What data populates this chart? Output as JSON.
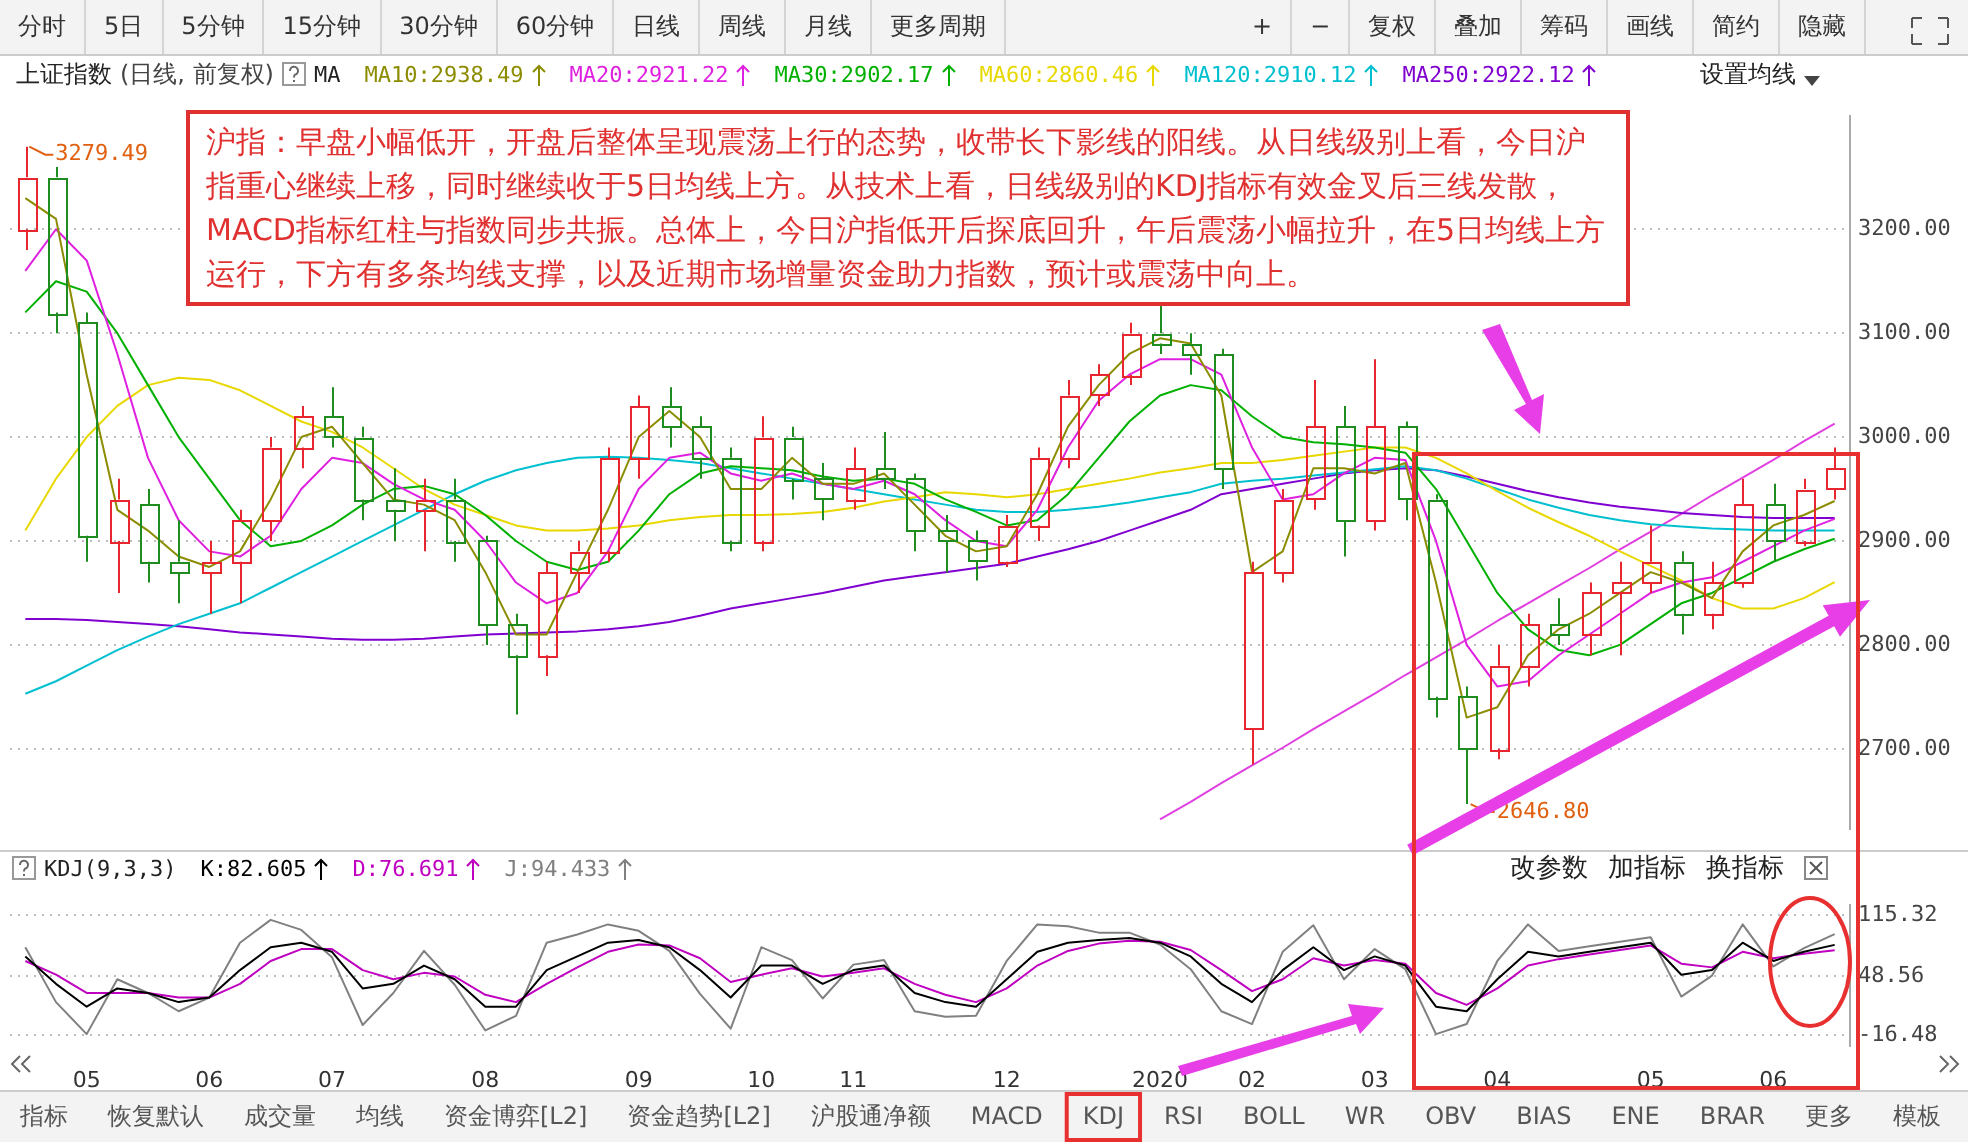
{
  "chart_data": [
    {
      "type": "other",
      "annotations": [
        "分时",
        "5日",
        "5分钟",
        "15分钟",
        "30分钟",
        "60分钟",
        "日线",
        "周线",
        "月线",
        "更多周期"
      ]
    },
    {
      "type": "other",
      "annotations": [
        "+",
        "−",
        "复权",
        "叠加",
        "筹码",
        "画线",
        "简约",
        "隐藏"
      ]
    },
    {
      "type": "candlestick",
      "title": "上证指数",
      "subtitle": "(日线, 前复权)",
      "legend_title": "MA",
      "categories": [
        null,
        null,
        "05",
        null,
        null,
        null,
        "06",
        null,
        null,
        null,
        "07",
        null,
        null,
        null,
        null,
        "08",
        null,
        null,
        null,
        null,
        "09",
        null,
        null,
        null,
        "10",
        null,
        null,
        "11",
        null,
        null,
        null,
        null,
        "12",
        null,
        null,
        null,
        null,
        "2020",
        null,
        null,
        "02",
        null,
        null,
        null,
        "03",
        null,
        null,
        null,
        "04",
        null,
        null,
        null,
        null,
        "05",
        null,
        null,
        null,
        "06",
        null,
        null
      ],
      "ohlc": [
        [
          3200,
          3279.49,
          3180,
          3250
        ],
        [
          3250,
          3260,
          3100,
          3120
        ],
        [
          3110,
          3120,
          2880,
          2905
        ],
        [
          2900,
          2960,
          2850,
          2940
        ],
        [
          2935,
          2950,
          2860,
          2880
        ],
        [
          2880,
          2920,
          2840,
          2870
        ],
        [
          2870,
          2900,
          2830,
          2880
        ],
        [
          2880,
          2930,
          2840,
          2920
        ],
        [
          2920,
          3000,
          2900,
          2990
        ],
        [
          2990,
          3030,
          2970,
          3020
        ],
        [
          3020,
          3048,
          2990,
          3000
        ],
        [
          3000,
          3010,
          2920,
          2940
        ],
        [
          2940,
          2970,
          2900,
          2930
        ],
        [
          2930,
          2960,
          2890,
          2940
        ],
        [
          2940,
          2960,
          2880,
          2900
        ],
        [
          2900,
          2905,
          2800,
          2820
        ],
        [
          2820,
          2830,
          2733,
          2790
        ],
        [
          2790,
          2880,
          2770,
          2870
        ],
        [
          2870,
          2900,
          2850,
          2890
        ],
        [
          2890,
          2990,
          2880,
          2980
        ],
        [
          2980,
          3040,
          2960,
          3030
        ],
        [
          3030,
          3048,
          2990,
          3010
        ],
        [
          3010,
          3020,
          2960,
          2980
        ],
        [
          2980,
          2990,
          2890,
          2900
        ],
        [
          2900,
          3020,
          2890,
          3000
        ],
        [
          3000,
          3010,
          2940,
          2960
        ],
        [
          2960,
          2975,
          2920,
          2940
        ],
        [
          2940,
          2990,
          2930,
          2970
        ],
        [
          2970,
          3005,
          2950,
          2960
        ],
        [
          2960,
          2965,
          2890,
          2910
        ],
        [
          2910,
          2925,
          2870,
          2900
        ],
        [
          2900,
          2910,
          2862,
          2880
        ],
        [
          2880,
          2925,
          2875,
          2915
        ],
        [
          2915,
          2990,
          2900,
          2980
        ],
        [
          2980,
          3055,
          2970,
          3040
        ],
        [
          3040,
          3070,
          3030,
          3060
        ],
        [
          3060,
          3110,
          3050,
          3100
        ],
        [
          3100,
          3127,
          3080,
          3090
        ],
        [
          3090,
          3100,
          3060,
          3080
        ],
        [
          3080,
          3085,
          2950,
          2970
        ],
        [
          2720,
          2880,
          2685,
          2870
        ],
        [
          2870,
          2950,
          2860,
          2940
        ],
        [
          2940,
          3055,
          2930,
          3010
        ],
        [
          3010,
          3030,
          2885,
          2920
        ],
        [
          2920,
          3075,
          2910,
          3010
        ],
        [
          3010,
          3015,
          2920,
          2940
        ],
        [
          2940,
          2945,
          2730,
          2750
        ],
        [
          2750,
          2760,
          2646.8,
          2700
        ],
        [
          2700,
          2800,
          2690,
          2780
        ],
        [
          2780,
          2830,
          2760,
          2820
        ],
        [
          2820,
          2845,
          2800,
          2810
        ],
        [
          2810,
          2860,
          2790,
          2850
        ],
        [
          2850,
          2880,
          2790,
          2860
        ],
        [
          2860,
          2915,
          2850,
          2880
        ],
        [
          2880,
          2890,
          2810,
          2830
        ],
        [
          2830,
          2880,
          2815,
          2860
        ],
        [
          2860,
          2960,
          2855,
          2935
        ],
        [
          2935,
          2955,
          2880,
          2900
        ],
        [
          2900,
          2960,
          2895,
          2950
        ],
        [
          2950,
          2990,
          2940,
          2970
        ]
      ],
      "colors": [
        "#e8262d",
        "#1e8c1e",
        "#1e8c1e",
        "#e8262d",
        "#1e8c1e",
        "#1e8c1e",
        "#e8262d",
        "#e8262d",
        "#e8262d",
        "#e8262d",
        "#1e8c1e",
        "#1e8c1e",
        "#1e8c1e",
        "#e8262d",
        "#1e8c1e",
        "#1e8c1e",
        "#1e8c1e",
        "#e8262d",
        "#e8262d",
        "#e8262d",
        "#e8262d",
        "#1e8c1e",
        "#1e8c1e",
        "#1e8c1e",
        "#e8262d",
        "#1e8c1e",
        "#1e8c1e",
        "#e8262d",
        "#1e8c1e",
        "#1e8c1e",
        "#1e8c1e",
        "#1e8c1e",
        "#e8262d",
        "#e8262d",
        "#e8262d",
        "#e8262d",
        "#e8262d",
        "#1e8c1e",
        "#1e8c1e",
        "#1e8c1e",
        "#e8262d",
        "#e8262d",
        "#e8262d",
        "#1e8c1e",
        "#e8262d",
        "#1e8c1e",
        "#1e8c1e",
        "#1e8c1e",
        "#e8262d",
        "#e8262d",
        "#1e8c1e",
        "#e8262d",
        "#e8262d",
        "#e8262d",
        "#1e8c1e",
        "#e8262d",
        "#e8262d",
        "#1e8c1e",
        "#e8262d",
        "#e8262d"
      ],
      "series": [
        {
          "name": "MA10:2938.49",
          "type": "line",
          "color": "#8c8c00",
          "values": [
            3230,
            3210,
            3060,
            2930,
            2910,
            2885,
            2875,
            2890,
            2940,
            3000,
            3010,
            2975,
            2940,
            2935,
            2920,
            2870,
            2810,
            2810,
            2870,
            2930,
            3000,
            3025,
            3000,
            2950,
            2950,
            2980,
            2955,
            2955,
            2965,
            2935,
            2905,
            2890,
            2895,
            2945,
            3010,
            3050,
            3080,
            3095,
            3090,
            3040,
            2870,
            2890,
            2970,
            2970,
            2965,
            2975,
            2860,
            2730,
            2740,
            2790,
            2815,
            2830,
            2850,
            2870,
            2860,
            2845,
            2890,
            2915,
            2925,
            2938.49
          ]
        },
        {
          "name": "MA20:2921.22",
          "type": "line",
          "color": "#e020e0",
          "values": [
            3160,
            3200,
            3170,
            3080,
            2980,
            2920,
            2890,
            2885,
            2905,
            2950,
            2980,
            2975,
            2955,
            2940,
            2930,
            2900,
            2860,
            2840,
            2850,
            2890,
            2950,
            2980,
            2985,
            2965,
            2958,
            2965,
            2955,
            2950,
            2958,
            2945,
            2920,
            2900,
            2895,
            2930,
            2990,
            3035,
            3060,
            3075,
            3075,
            3060,
            2990,
            2940,
            2945,
            2965,
            2980,
            2978,
            2900,
            2800,
            2760,
            2765,
            2790,
            2810,
            2830,
            2850,
            2860,
            2865,
            2880,
            2895,
            2910,
            2921.22
          ]
        },
        {
          "name": "MA30:2902.17",
          "type": "line",
          "color": "#00b000",
          "values": [
            3120,
            3150,
            3140,
            3100,
            3050,
            3000,
            2960,
            2920,
            2895,
            2900,
            2915,
            2935,
            2950,
            2953,
            2945,
            2925,
            2900,
            2880,
            2872,
            2880,
            2910,
            2945,
            2965,
            2972,
            2970,
            2968,
            2962,
            2958,
            2960,
            2955,
            2940,
            2928,
            2915,
            2920,
            2945,
            2980,
            3015,
            3040,
            3050,
            3045,
            3020,
            3000,
            2995,
            2993,
            2990,
            2985,
            2950,
            2900,
            2850,
            2815,
            2795,
            2790,
            2800,
            2820,
            2840,
            2850,
            2865,
            2880,
            2892,
            2902.17
          ]
        },
        {
          "name": "MA60:2860.46",
          "type": "line",
          "color": "#e8d800",
          "values": [
            2910,
            2960,
            3000,
            3030,
            3050,
            3057,
            3055,
            3045,
            3030,
            3015,
            3005,
            2990,
            2970,
            2950,
            2935,
            2925,
            2915,
            2910,
            2910,
            2912,
            2915,
            2920,
            2923,
            2925,
            2925,
            2926,
            2928,
            2932,
            2938,
            2942,
            2947,
            2945,
            2942,
            2945,
            2950,
            2955,
            2960,
            2966,
            2970,
            2975,
            2975,
            2978,
            2982,
            2986,
            2990,
            2990,
            2980,
            2965,
            2948,
            2932,
            2918,
            2905,
            2890,
            2876,
            2862,
            2845,
            2835,
            2835,
            2845,
            2860.46
          ]
        },
        {
          "name": "MA120:2910.12",
          "type": "line",
          "color": "#00c0d0",
          "values": [
            2753,
            2765,
            2780,
            2795,
            2808,
            2820,
            2830,
            2840,
            2855,
            2870,
            2885,
            2900,
            2915,
            2930,
            2945,
            2958,
            2968,
            2975,
            2980,
            2981,
            2980,
            2978,
            2975,
            2970,
            2965,
            2960,
            2955,
            2950,
            2945,
            2940,
            2935,
            2930,
            2928,
            2928,
            2930,
            2933,
            2937,
            2942,
            2947,
            2955,
            2958,
            2960,
            2963,
            2966,
            2969,
            2972,
            2968,
            2960,
            2950,
            2940,
            2932,
            2925,
            2920,
            2916,
            2914,
            2912,
            2911,
            2910,
            2910,
            2910.12
          ]
        },
        {
          "name": "MA250:2922.12",
          "type": "line",
          "color": "#8000d0",
          "values": [
            2825,
            2825,
            2824,
            2822,
            2820,
            2818,
            2815,
            2812,
            2810,
            2808,
            2806,
            2805,
            2805,
            2806,
            2808,
            2810,
            2811,
            2812,
            2813,
            2815,
            2818,
            2822,
            2828,
            2835,
            2840,
            2845,
            2850,
            2856,
            2862,
            2866,
            2870,
            2874,
            2878,
            2885,
            2892,
            2900,
            2910,
            2920,
            2930,
            2945,
            2950,
            2955,
            2960,
            2965,
            2968,
            2970,
            2968,
            2962,
            2955,
            2948,
            2942,
            2937,
            2933,
            2930,
            2927,
            2925,
            2923,
            2922,
            2922,
            2922.12
          ]
        },
        {
          "type": "line",
          "color": "#e040e0",
          "values": [
            null,
            null,
            null,
            null,
            null,
            null,
            null,
            null,
            null,
            null,
            null,
            null,
            null,
            null,
            null,
            null,
            null,
            null,
            null,
            null,
            null,
            null,
            null,
            null,
            null,
            null,
            null,
            null,
            null,
            null,
            null,
            null,
            null,
            null,
            null,
            null,
            null,
            2632,
            2649,
            2667,
            2684,
            2701,
            2719,
            2736,
            2753,
            2771,
            2788,
            2805,
            2823,
            2840,
            2857,
            2874,
            2892,
            2909,
            2926,
            2944,
            2961,
            2978,
            2996,
            3013
          ]
        }
      ],
      "ylim": [
        2623,
        3309
      ],
      "yticks": [
        {
          "value": 2700,
          "label": "2700.00"
        },
        {
          "value": 2800,
          "label": "2800.00"
        },
        {
          "value": 2900,
          "label": "2900.00"
        },
        {
          "value": 3000,
          "label": "3000.00"
        },
        {
          "value": 3100,
          "label": "3100.00"
        },
        {
          "value": 3200,
          "label": "3200.00"
        }
      ],
      "grid": "y",
      "legend": "top left",
      "marker": "none",
      "tick_labels": "y",
      "annotations": [
        "沪指：早盘小幅低开，开盘后整体呈现震荡上行的态势，收带长下影线的阳线。从日线级别上看，今日沪指重心继续上移，同时继续收于5日均线上方。从技术上看，日线级别的KDJ指标有效金叉后三线发散，MACD指标红柱与指数同步共振。总体上，今日沪指低开后探底回升，午后震荡小幅拉升，在5日均线上方运行，下方有多条均线支撑，以及近期市场增量资金助力指数，预计或震荡中向上。",
        "设置均线",
        "3279.49",
        "2646.80"
      ]
    },
    {
      "type": "line",
      "title": "KDJ(9,3,3)",
      "categories": [
        null,
        null,
        "05",
        null,
        null,
        null,
        "06",
        null,
        null,
        null,
        "07",
        null,
        null,
        null,
        null,
        "08",
        null,
        null,
        null,
        null,
        "09",
        null,
        null,
        null,
        "10",
        null,
        null,
        "11",
        null,
        null,
        null,
        null,
        "12",
        null,
        null,
        null,
        null,
        "2020",
        null,
        null,
        "02",
        null,
        null,
        null,
        "03",
        null,
        null,
        null,
        "04",
        null,
        null,
        null,
        null,
        "05",
        null,
        null,
        null,
        "06",
        null,
        null
      ],
      "series": [
        {
          "name": "K:82.605",
          "color": "#000000",
          "values": [
            70,
            40,
            15,
            35,
            30,
            20,
            25,
            55,
            80,
            85,
            75,
            35,
            40,
            60,
            45,
            15,
            15,
            55,
            70,
            85,
            88,
            80,
            55,
            25,
            60,
            60,
            40,
            55,
            60,
            30,
            20,
            15,
            45,
            75,
            85,
            88,
            90,
            85,
            70,
            40,
            20,
            55,
            80,
            55,
            70,
            60,
            15,
            10,
            45,
            75,
            70,
            75,
            80,
            85,
            50,
            55,
            85,
            65,
            75,
            82.605
          ]
        },
        {
          "name": "D:76.691",
          "color": "#c000c0",
          "values": [
            65,
            50,
            30,
            30,
            30,
            25,
            25,
            40,
            65,
            78,
            78,
            55,
            45,
            52,
            48,
            28,
            20,
            40,
            58,
            75,
            83,
            82,
            68,
            42,
            50,
            57,
            48,
            52,
            57,
            40,
            28,
            20,
            35,
            60,
            76,
            84,
            87,
            86,
            77,
            55,
            32,
            45,
            68,
            60,
            66,
            62,
            30,
            17,
            35,
            60,
            67,
            72,
            77,
            82,
            62,
            58,
            75,
            68,
            73,
            76.691
          ]
        },
        {
          "name": "J:94.433",
          "color": "#808080",
          "values": [
            80,
            20,
            -15,
            45,
            30,
            10,
            25,
            85,
            110,
            99,
            69,
            -5,
            30,
            76,
            39,
            -11,
            5,
            85,
            94,
            105,
            98,
            76,
            29,
            -9,
            80,
            66,
            24,
            61,
            66,
            10,
            4,
            5,
            65,
            105,
            103,
            96,
            96,
            83,
            56,
            10,
            -4,
            75,
            104,
            45,
            78,
            56,
            -15,
            -4,
            65,
            105,
            76,
            81,
            86,
            91,
            26,
            49,
            105,
            59,
            79,
            94.433
          ]
        }
      ],
      "ylim": [
        -28,
        126
      ],
      "yticks": [
        -16.48,
        48.56,
        115.32
      ],
      "grid": "y",
      "legend": "top left",
      "marker": "none",
      "annotations": [
        "改参数",
        "加指标",
        "换指标"
      ]
    },
    {
      "type": "other",
      "annotations": [
        "指标",
        "恢复默认",
        "成交量",
        "均线",
        "资金博弈[L2]",
        "资金趋势[L2]",
        "沪股通净额",
        "MACD",
        "KDJ",
        "RSI",
        "BOLL",
        "WR",
        "OBV",
        "BIAS",
        "ENE",
        "BRAR",
        "更多",
        "模板"
      ]
    }
  ]
}
